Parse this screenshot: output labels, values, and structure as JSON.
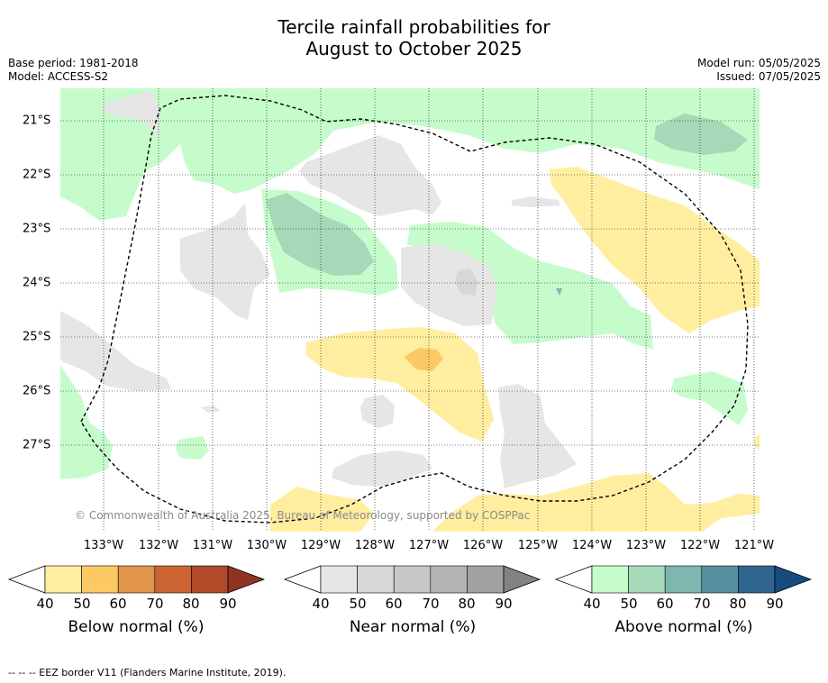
{
  "title_line1": "Tercile rainfall probabilities for",
  "title_line2": "August to October 2025",
  "meta_left": {
    "base_period": "Base period: 1981-2018",
    "model": "Model: ACCESS-S2"
  },
  "meta_right": {
    "model_run": "Model run: 05/05/2025",
    "issued": "Issued: 07/05/2025"
  },
  "map": {
    "x_ticks": [
      "133°W",
      "132°W",
      "131°W",
      "130°W",
      "129°W",
      "128°W",
      "127°W",
      "126°W",
      "125°W",
      "124°W",
      "123°W",
      "122°W",
      "121°W"
    ],
    "y_ticks": [
      "21°S",
      "22°S",
      "23°S",
      "24°S",
      "25°S",
      "26°S",
      "27°S"
    ],
    "copyright": "© Commonwealth of Australia 2025, Bureau of Meteorology, supported by COSPPac"
  },
  "colorbars": [
    {
      "label": "Below normal (%)",
      "ticks": [
        "40",
        "50",
        "60",
        "70",
        "80",
        "90"
      ],
      "colors": [
        "#ffeea0",
        "#fdc964",
        "#e0954a",
        "#cc6532",
        "#b04a28",
        "#913322"
      ]
    },
    {
      "label": "Near normal (%)",
      "ticks": [
        "40",
        "50",
        "60",
        "70",
        "80",
        "90"
      ],
      "colors": [
        "#e6e6e6",
        "#d7d7d7",
        "#c6c6c6",
        "#b4b4b4",
        "#a1a1a1",
        "#838383"
      ]
    },
    {
      "label": "Above normal (%)",
      "ticks": [
        "40",
        "50",
        "60",
        "70",
        "80",
        "90"
      ],
      "colors": [
        "#c6fccb",
        "#a5d9b8",
        "#7eb6b0",
        "#5890a0",
        "#306590",
        "#174b7d"
      ]
    }
  ],
  "footer": "--  --  -- EEZ border V11 (Flanders Marine Institute, 2019)."
}
